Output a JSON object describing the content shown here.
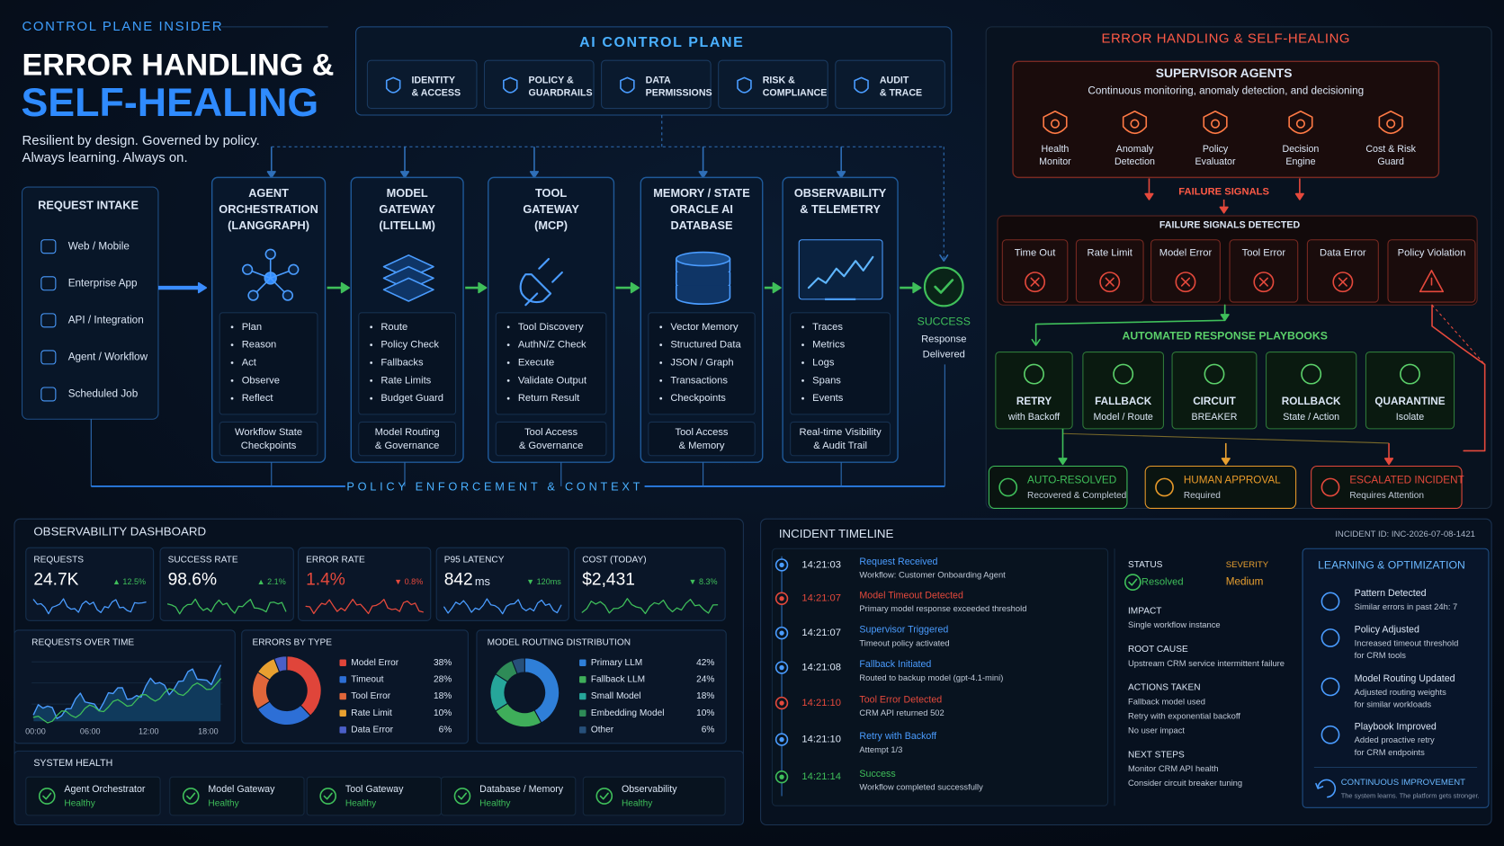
{
  "header": {
    "kicker": "CONTROL PLANE INSIDER",
    "title_line1": "ERROR HANDLING &",
    "title_line2": "SELF-HEALING",
    "tagline_line1": "Resilient by design. Governed by policy.",
    "tagline_line2": "Always learning. Always on."
  },
  "control_plane": {
    "title": "AI CONTROL PLANE",
    "items": [
      [
        "IDENTITY",
        "& ACCESS"
      ],
      [
        "POLICY &",
        "GUARDRAILS"
      ],
      [
        "DATA",
        "PERMISSIONS"
      ],
      [
        "RISK &",
        "COMPLIANCE"
      ],
      [
        "AUDIT",
        "& TRACE"
      ]
    ]
  },
  "request_intake": {
    "title": "REQUEST INTAKE",
    "items": [
      "Web / Mobile",
      "Enterprise App",
      "API / Integration",
      "Agent / Workflow",
      "Scheduled Job"
    ]
  },
  "stages": [
    {
      "title": [
        "AGENT",
        "ORCHESTRATION",
        "(LANGGRAPH)"
      ],
      "bullets": [
        "Plan",
        "Reason",
        "Act",
        "Observe",
        "Reflect"
      ],
      "footer": [
        "Workflow State",
        "Checkpoints"
      ]
    },
    {
      "title": [
        "MODEL",
        "GATEWAY",
        "(LITELLM)"
      ],
      "bullets": [
        "Route",
        "Policy Check",
        "Fallbacks",
        "Rate Limits",
        "Budget Guard"
      ],
      "footer": [
        "Model Routing",
        "& Governance"
      ]
    },
    {
      "title": [
        "TOOL",
        "GATEWAY",
        "(MCP)"
      ],
      "bullets": [
        "Tool Discovery",
        "AuthN/Z Check",
        "Execute",
        "Validate Output",
        "Return Result"
      ],
      "footer": [
        "Tool Access",
        "& Governance"
      ]
    },
    {
      "title": [
        "MEMORY / STATE",
        "ORACLE AI",
        "DATABASE"
      ],
      "bullets": [
        "Vector Memory",
        "Structured Data",
        "JSON / Graph",
        "Transactions",
        "Checkpoints"
      ],
      "footer": [
        "Tool Access",
        "& Memory"
      ]
    },
    {
      "title": [
        "OBSERVABILITY",
        "& TELEMETRY"
      ],
      "bullets": [
        "Traces",
        "Metrics",
        "Logs",
        "Spans",
        "Events"
      ],
      "footer": [
        "Real-time Visibility",
        "& Audit Trail"
      ]
    }
  ],
  "success": {
    "title": "SUCCESS",
    "lines": [
      "Response",
      "Delivered"
    ]
  },
  "policy_bar": "POLICY ENFORCEMENT & CONTEXT",
  "self_healing": {
    "title": "ERROR HANDLING & SELF-HEALING",
    "supervisor": {
      "title": "SUPERVISOR AGENTS",
      "subtitle": "Continuous monitoring, anomaly detection, and decisioning",
      "agents": [
        [
          "Health",
          "Monitor"
        ],
        [
          "Anomaly",
          "Detection"
        ],
        [
          "Policy",
          "Evaluator"
        ],
        [
          "Decision",
          "Engine"
        ],
        [
          "Cost & Risk",
          "Guard"
        ]
      ]
    },
    "failure_signals": "FAILURE SIGNALS",
    "detected": {
      "title": "FAILURE SIGNALS DETECTED",
      "signals": [
        "Time Out",
        "Rate Limit",
        "Model Error",
        "Tool Error",
        "Data Error",
        "Policy Violation"
      ]
    },
    "playbooks": {
      "title": "AUTOMATED RESPONSE PLAYBOOKS",
      "items": [
        {
          "title": "RETRY",
          "sub": "with Backoff"
        },
        {
          "title": "FALLBACK",
          "sub": "Model / Route"
        },
        {
          "title": "CIRCUIT",
          "sub": "BREAKER"
        },
        {
          "title": "ROLLBACK",
          "sub": "State / Action"
        },
        {
          "title": "QUARANTINE",
          "sub": "Isolate"
        }
      ]
    },
    "outcomes": [
      {
        "title": "AUTO-RESOLVED",
        "sub": "Recovered & Completed",
        "color": "#3fbf5a"
      },
      {
        "title": "HUMAN APPROVAL",
        "sub": "Required",
        "color": "#e89a2a"
      },
      {
        "title": "ESCALATED INCIDENT",
        "sub": "Requires Attention",
        "color": "#e5493c"
      }
    ]
  },
  "dashboard": {
    "title": "OBSERVABILITY DASHBOARD",
    "kpis": [
      {
        "label": "REQUESTS",
        "value": "24.7K",
        "delta": "▲ 12.5%",
        "color": "#3fbf5a"
      },
      {
        "label": "SUCCESS RATE",
        "value": "98.6%",
        "delta": "▲ 2.1%",
        "color": "#3fbf5a"
      },
      {
        "label": "ERROR RATE",
        "value": "1.4%",
        "delta": "▼ 0.8%",
        "color": "#e5493c"
      },
      {
        "label": "P95 LATENCY",
        "value": "842",
        "unit": "ms",
        "delta": "▼ 120ms",
        "color": "#3fbf5a"
      },
      {
        "label": "COST (TODAY)",
        "value": "$2,431",
        "delta": "▼ 8.3%",
        "color": "#3fbf5a"
      }
    ],
    "requests_over_time": {
      "title": "REQUESTS OVER TIME",
      "x_labels": [
        "00:00",
        "06:00",
        "12:00",
        "18:00"
      ]
    },
    "system_health": {
      "title": "SYSTEM HEALTH",
      "items": [
        {
          "name": "Agent Orchestrator",
          "status": "Healthy"
        },
        {
          "name": "Model Gateway",
          "status": "Healthy"
        },
        {
          "name": "Tool Gateway",
          "status": "Healthy"
        },
        {
          "name": "Database / Memory",
          "status": "Healthy"
        },
        {
          "name": "Observability",
          "status": "Healthy"
        }
      ]
    }
  },
  "chart_data": [
    {
      "type": "pie",
      "title": "ERRORS BY TYPE",
      "categories": [
        "Model Error",
        "Timeout",
        "Tool Error",
        "Rate Limit",
        "Data Error"
      ],
      "values": [
        38,
        28,
        18,
        10,
        6
      ],
      "value_labels": [
        "38%",
        "28%",
        "18%",
        "10%",
        "6%"
      ],
      "colors": [
        "#e0453a",
        "#2d6fd6",
        "#e0663a",
        "#e8a030",
        "#4b5fc8"
      ]
    },
    {
      "type": "pie",
      "title": "MODEL ROUTING DISTRIBUTION",
      "categories": [
        "Primary LLM",
        "Fallback LLM",
        "Small Model",
        "Embedding Model",
        "Other"
      ],
      "values": [
        42,
        24,
        18,
        10,
        6
      ],
      "value_labels": [
        "42%",
        "24%",
        "18%",
        "10%",
        "6%"
      ],
      "colors": [
        "#2f7fd8",
        "#3fae5a",
        "#26a69a",
        "#2e8b57",
        "#27507a"
      ]
    }
  ],
  "incident": {
    "title": "INCIDENT TIMELINE",
    "id": "INCIDENT ID: INC-2026-07-08-1421",
    "events": [
      {
        "time": "14:21:03",
        "title": "Request Received",
        "detail": "Workflow: Customer Onboarding Agent",
        "color": "#4a9cff"
      },
      {
        "time": "14:21:07",
        "title": "Model Timeout Detected",
        "detail": "Primary model response exceeded threshold",
        "color": "#e5493c"
      },
      {
        "time": "14:21:07",
        "title": "Supervisor Triggered",
        "detail": "Timeout policy activated",
        "color": "#4a9cff"
      },
      {
        "time": "14:21:08",
        "title": "Fallback Initiated",
        "detail": "Routed to backup model (gpt-4.1-mini)",
        "color": "#4a9cff"
      },
      {
        "time": "14:21:10",
        "title": "Tool Error Detected",
        "detail": "CRM API returned 502",
        "color": "#e5493c"
      },
      {
        "time": "14:21:10",
        "title": "Retry with Backoff",
        "detail": "Attempt 1/3",
        "color": "#4a9cff"
      },
      {
        "time": "14:21:14",
        "title": "Success",
        "detail": "Workflow completed successfully",
        "color": "#3fbf5a"
      }
    ],
    "status": {
      "label": "STATUS",
      "value": "Resolved"
    },
    "severity": {
      "label": "SEVERITY",
      "value": "Medium"
    },
    "sections": [
      {
        "label": "IMPACT",
        "lines": [
          "Single workflow instance"
        ]
      },
      {
        "label": "ROOT CAUSE",
        "lines": [
          "Upstream CRM service intermittent failure"
        ]
      },
      {
        "label": "ACTIONS TAKEN",
        "lines": [
          "Fallback model used",
          "Retry with exponential backoff",
          "No user impact"
        ]
      },
      {
        "label": "NEXT STEPS",
        "lines": [
          "Monitor CRM API health",
          "Consider circuit breaker tuning"
        ]
      }
    ]
  },
  "learning": {
    "title": "LEARNING & OPTIMIZATION",
    "items": [
      {
        "title": "Pattern Detected",
        "lines": [
          "Similar errors in past 24h: 7"
        ]
      },
      {
        "title": "Policy Adjusted",
        "lines": [
          "Increased timeout threshold",
          "for CRM tools"
        ]
      },
      {
        "title": "Model Routing Updated",
        "lines": [
          "Adjusted routing weights",
          "for similar workloads"
        ]
      },
      {
        "title": "Playbook Improved",
        "lines": [
          "Added proactive retry",
          "for CRM endpoints"
        ]
      }
    ],
    "footer": {
      "title": "CONTINUOUS IMPROVEMENT",
      "sub": "The system learns. The platform gets stronger."
    }
  }
}
